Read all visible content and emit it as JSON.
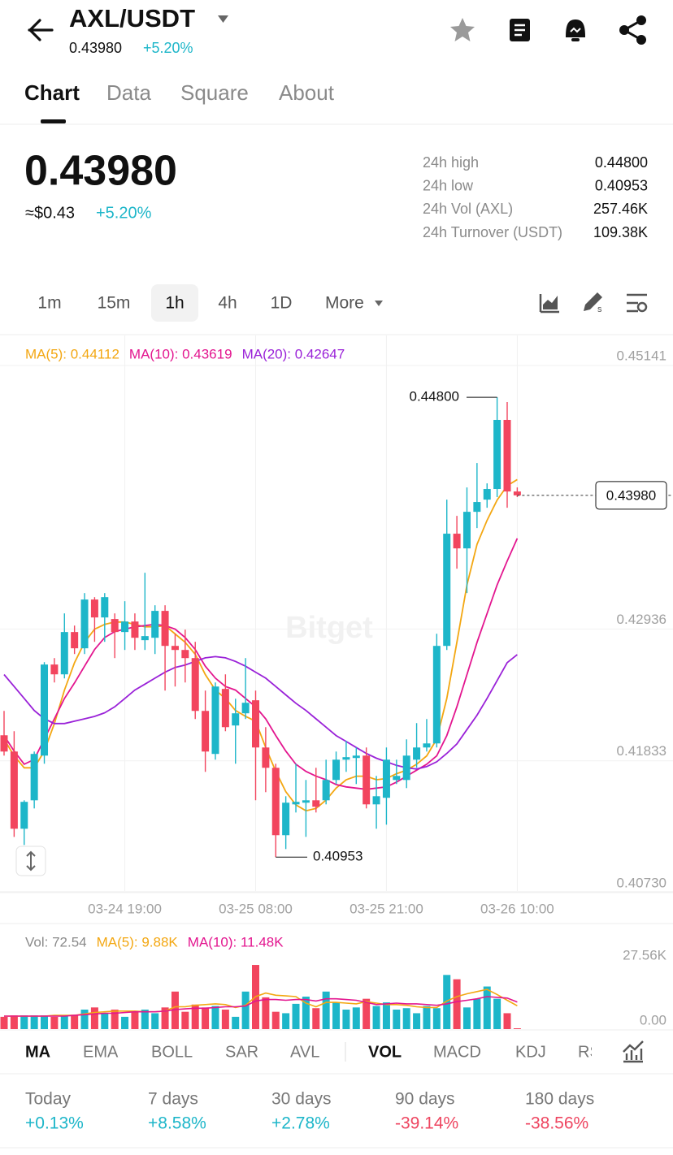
{
  "header": {
    "pair": "AXL/USDT",
    "price": "0.43980",
    "change": "+5.20%"
  },
  "tabs": [
    "Chart",
    "Data",
    "Square",
    "About"
  ],
  "summary": {
    "price": "0.43980",
    "usd": "≈$0.43",
    "change": "+5.20%"
  },
  "stats": [
    {
      "label": "24h high",
      "value": "0.44800"
    },
    {
      "label": "24h low",
      "value": "0.40953"
    },
    {
      "label": "24h Vol (AXL)",
      "value": "257.46K"
    },
    {
      "label": "24h Turnover (USDT)",
      "value": "109.38K"
    }
  ],
  "intervals": [
    "1m",
    "15m",
    "1h",
    "4h",
    "1D",
    "More"
  ],
  "watermark": "Bitget",
  "chart_data": [
    {
      "type": "candlestick",
      "categories": [
        null,
        null,
        null,
        null,
        null,
        null,
        null,
        null,
        null,
        null,
        null,
        null,
        "03-24 19:00",
        null,
        null,
        null,
        null,
        null,
        null,
        null,
        null,
        null,
        null,
        null,
        null,
        "03-25 08:00",
        null,
        null,
        null,
        null,
        null,
        null,
        null,
        null,
        null,
        null,
        null,
        null,
        "03-25 21:00",
        null,
        null,
        null,
        null,
        null,
        null,
        null,
        null,
        null,
        null,
        null,
        null,
        "03-26 10:00"
      ],
      "open": [
        0.41972,
        0.41836,
        0.4119,
        0.41428,
        0.41802,
        0.42564,
        0.42482,
        0.42836,
        0.427,
        0.43108,
        0.42958,
        0.42945,
        0.42836,
        0.42924,
        0.42768,
        0.42788,
        0.43013,
        0.4272,
        0.42686,
        0.42618,
        0.42176,
        0.41816,
        0.4236,
        0.42054,
        0.42156,
        0.42265,
        0.4187,
        0.417,
        0.41136,
        0.41394,
        0.41408,
        0.41428,
        0.41428,
        0.41598,
        0.41768,
        0.41782,
        0.41802,
        0.41394,
        0.41449,
        0.41598,
        0.41598,
        0.41768,
        0.4187,
        0.41904,
        0.4272,
        0.43659,
        0.43536,
        0.43842,
        0.43944,
        0.44033,
        0.44611,
        0.44012
      ],
      "high": [
        0.42176,
        0.42006,
        0.41428,
        0.41836,
        0.42584,
        0.42618,
        0.42992,
        0.4289,
        0.43162,
        0.43128,
        0.43162,
        0.42992,
        0.43094,
        0.42992,
        0.43332,
        0.4306,
        0.4306,
        0.42822,
        0.42856,
        0.42754,
        0.42346,
        0.42414,
        0.42482,
        0.42278,
        0.42618,
        0.42346,
        0.4204,
        0.41734,
        0.41462,
        0.41734,
        0.41598,
        0.417,
        0.41768,
        0.41836,
        0.41925,
        0.4187,
        0.4187,
        0.41632,
        0.4187,
        0.41768,
        0.41938,
        0.42074,
        0.42108,
        0.42822,
        0.43944,
        0.43808,
        0.44046,
        0.4425,
        0.4408,
        0.448,
        0.4476,
        0.44046
      ],
      "low": [
        0.41802,
        0.41122,
        0.41054,
        0.4136,
        0.41734,
        0.42414,
        0.42448,
        0.42652,
        0.42652,
        0.42754,
        0.42754,
        0.42618,
        0.42686,
        0.42686,
        0.42686,
        0.42652,
        0.42346,
        0.4238,
        0.42414,
        0.42108,
        0.41666,
        0.41768,
        0.42006,
        0.41734,
        0.42108,
        0.41428,
        0.41496,
        0.40953,
        0.4102,
        0.41326,
        0.41122,
        0.41326,
        0.41394,
        0.41564,
        0.41666,
        0.41564,
        0.4136,
        0.4119,
        0.41224,
        0.41564,
        0.4153,
        0.417,
        0.41836,
        0.4187,
        0.42686,
        0.43366,
        0.43162,
        0.43706,
        0.43876,
        0.43965,
        0.43876,
        0.43965
      ],
      "close": [
        0.41836,
        0.4119,
        0.41415,
        0.41816,
        0.42564,
        0.42482,
        0.42836,
        0.427,
        0.43108,
        0.42958,
        0.43128,
        0.42836,
        0.42924,
        0.42788,
        0.42802,
        0.43013,
        0.4272,
        0.42686,
        0.42618,
        0.42176,
        0.41836,
        0.4238,
        0.4204,
        0.42156,
        0.42244,
        0.4187,
        0.417,
        0.41136,
        0.41408,
        0.41415,
        0.41428,
        0.41374,
        0.41598,
        0.41768,
        0.41789,
        0.41802,
        0.41394,
        0.41462,
        0.41768,
        0.41632,
        0.41802,
        0.4187,
        0.41904,
        0.4272,
        0.43659,
        0.43536,
        0.43842,
        0.43924,
        0.44033,
        0.44611,
        0.44012,
        0.4398
      ],
      "up_color": "#1db6c9",
      "down_color": "#f2455e",
      "series": [
        {
          "name": "MA(5): 0.44112",
          "color": "#f3a712",
          "values": [
            0.4194,
            0.418,
            0.417,
            0.417,
            0.4184,
            0.4207,
            0.4235,
            0.4258,
            0.4275,
            0.4286,
            0.429,
            0.4292,
            0.4292,
            0.429,
            0.4288,
            0.4288,
            0.4289,
            0.4282,
            0.4275,
            0.4265,
            0.4248,
            0.4235,
            0.4228,
            0.4218,
            0.4213,
            0.4209,
            0.4187,
            0.4167,
            0.415,
            0.4139,
            0.4134,
            0.4136,
            0.4143,
            0.4153,
            0.416,
            0.4163,
            0.4163,
            0.416,
            0.4161,
            0.4165,
            0.4168,
            0.4173,
            0.418,
            0.4194,
            0.4228,
            0.4275,
            0.4323,
            0.4357,
            0.4377,
            0.4394,
            0.4406,
            0.44112
          ]
        },
        {
          "name": "MA(10): 0.43619",
          "color": "#e3168f",
          "values": [
            0.4197,
            0.4184,
            0.4173,
            0.4177,
            0.4194,
            0.4211,
            0.4228,
            0.4241,
            0.4255,
            0.4269,
            0.4279,
            0.4284,
            0.4286,
            0.4288,
            0.4289,
            0.429,
            0.4289,
            0.4286,
            0.4279,
            0.4269,
            0.4255,
            0.4245,
            0.4238,
            0.4235,
            0.4228,
            0.4221,
            0.4211,
            0.4197,
            0.4184,
            0.4173,
            0.4167,
            0.4163,
            0.416,
            0.4156,
            0.4154,
            0.4153,
            0.4152,
            0.4153,
            0.4154,
            0.4158,
            0.4163,
            0.4168,
            0.4173,
            0.418,
            0.4197,
            0.4221,
            0.4248,
            0.4275,
            0.4299,
            0.4323,
            0.4343,
            0.43619
          ]
        },
        {
          "name": "MA(20): 0.42647",
          "color": "#9a22d8",
          "values": [
            0.4248,
            0.4238,
            0.4228,
            0.4218,
            0.4211,
            0.4207,
            0.4207,
            0.4209,
            0.4211,
            0.4213,
            0.4216,
            0.4221,
            0.4228,
            0.4235,
            0.424,
            0.4245,
            0.425,
            0.4254,
            0.4256,
            0.4259,
            0.4262,
            0.4263,
            0.4262,
            0.4259,
            0.4255,
            0.425,
            0.4245,
            0.4238,
            0.4231,
            0.4224,
            0.4218,
            0.4211,
            0.4204,
            0.4197,
            0.4192,
            0.4187,
            0.4182,
            0.4178,
            0.4175,
            0.4172,
            0.417,
            0.4169,
            0.4171,
            0.4175,
            0.4182,
            0.419,
            0.4202,
            0.4214,
            0.4228,
            0.4243,
            0.4258,
            0.42647
          ]
        }
      ],
      "ylim": [
        0.4073,
        0.45141
      ],
      "yticks": [
        0.45141,
        0.42936,
        0.41833,
        {
          "value": 0.4073,
          "label": "0.40730"
        }
      ],
      "annotations": [
        {
          "label": "0.44800",
          "value": 0.448
        },
        {
          "label": "0.40953",
          "value": 0.40953
        }
      ],
      "last_price": {
        "label": "0.43980",
        "value": 0.4398
      },
      "grid": true
    },
    {
      "type": "bar",
      "legend_label": "Vol: 72.54",
      "values": [
        5210,
        5820,
        5820,
        5820,
        5820,
        5210,
        5820,
        6120,
        8270,
        9190,
        6740,
        8270,
        5210,
        7660,
        8270,
        6740,
        9190,
        15920,
        7350,
        10410,
        9190,
        9800,
        8270,
        5210,
        15920,
        27200,
        13470,
        7350,
        6740,
        10720,
        13780,
        8880,
        15920,
        11330,
        8270,
        9190,
        12860,
        9800,
        11330,
        8270,
        8880,
        6740,
        9800,
        8880,
        22970,
        21130,
        9190,
        12860,
        18070,
        12860,
        6740,
        72.54
      ],
      "series": [
        {
          "name": "MA(5): 9.88K",
          "color": "#f3a712",
          "values": [
            5510,
            5510,
            5510,
            5510,
            5510,
            5810,
            5810,
            5810,
            6430,
            7040,
            7340,
            7650,
            7650,
            7650,
            7340,
            7340,
            7650,
            9490,
            9490,
            10100,
            10400,
            10710,
            10400,
            9180,
            10100,
            13770,
            15300,
            14380,
            14080,
            13770,
            11020,
            9490,
            11320,
            11320,
            11020,
            10710,
            11630,
            11020,
            10400,
            10400,
            10100,
            9490,
            9180,
            9180,
            11930,
            13770,
            14990,
            15910,
            16830,
            14690,
            12240,
            9880
          ]
        },
        {
          "name": "MA(10): 11.48K",
          "color": "#e3168f",
          "values": [
            5510,
            5510,
            5510,
            5510,
            5510,
            5510,
            5510,
            5810,
            6120,
            6430,
            6730,
            6730,
            7040,
            7340,
            7340,
            7340,
            7650,
            8260,
            8570,
            8870,
            8870,
            9180,
            9490,
            9490,
            9790,
            11930,
            12550,
            12550,
            12240,
            12550,
            12550,
            11930,
            12850,
            12850,
            12550,
            12240,
            11320,
            10400,
            10710,
            11020,
            10710,
            10710,
            10400,
            10100,
            10710,
            11630,
            12240,
            12850,
            13770,
            13460,
            13160,
            11480
          ]
        }
      ],
      "ylim": [
        0,
        27560
      ],
      "yticks": [
        {
          "value": 0,
          "label": "0.00"
        },
        {
          "value": 27560,
          "label": "27.56K"
        }
      ]
    }
  ],
  "indicators": [
    "MA",
    "EMA",
    "BOLL",
    "SAR",
    "AVL",
    "VOL",
    "MACD",
    "KDJ",
    "RSI"
  ],
  "performance": [
    {
      "period": "Today",
      "change": "+0.13%"
    },
    {
      "period": "7 days",
      "change": "+8.58%"
    },
    {
      "period": "30 days",
      "change": "+2.78%"
    },
    {
      "period": "90 days",
      "change": "-39.14%"
    },
    {
      "period": "180 days",
      "change": "-38.56%"
    }
  ]
}
